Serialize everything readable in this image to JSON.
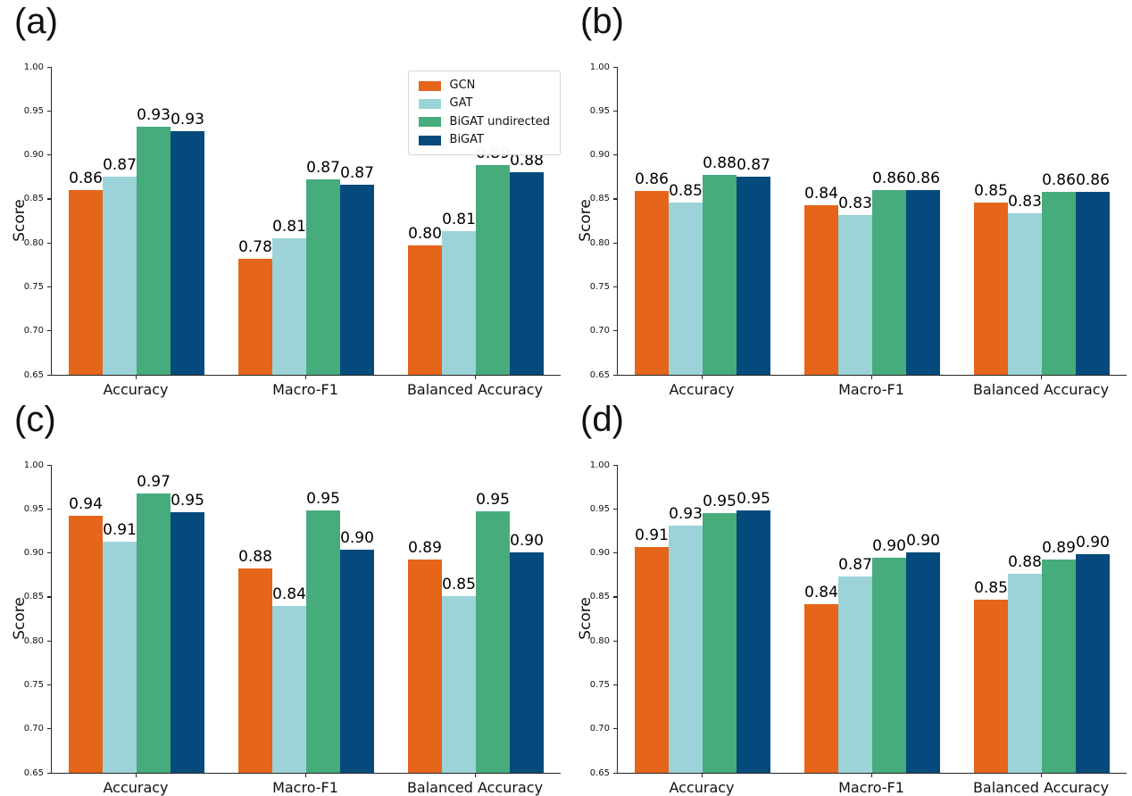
{
  "style": {
    "colors": {
      "GCN": "#E5651A",
      "GAT": "#9CD3D9",
      "BiGAT undirected": "#46AC7C",
      "BiGAT": "#054A7C"
    },
    "axis_color": "#262626",
    "legend_border": "#D5D5D5"
  },
  "legend": {
    "location": "upper right",
    "entries": [
      "GCN",
      "GAT",
      "BiGAT undirected",
      "BiGAT"
    ]
  },
  "chart_data": [
    {
      "id": "a",
      "title": "(a)",
      "type": "bar",
      "ylabel": "Score",
      "ylim": [
        0.65,
        1.0
      ],
      "yticks": [
        "1.00",
        "0.95",
        "0.90",
        "0.85",
        "0.80",
        "0.75",
        "0.70",
        "0.65"
      ],
      "categories": [
        "Accuracy",
        "Macro-F1",
        "Balanced Accuracy"
      ],
      "show_legend": true,
      "series": [
        {
          "name": "GCN",
          "values": [
            0.86,
            0.782,
            0.797
          ],
          "labels": [
            "0.86",
            "0.78",
            "0.80"
          ]
        },
        {
          "name": "GAT",
          "values": [
            0.875,
            0.805,
            0.813
          ],
          "labels": [
            "0.87",
            "0.81",
            "0.81"
          ]
        },
        {
          "name": "BiGAT undirected",
          "values": [
            0.932,
            0.872,
            0.888
          ],
          "labels": [
            "0.93",
            "0.87",
            "0.89"
          ]
        },
        {
          "name": "BiGAT",
          "values": [
            0.927,
            0.866,
            0.88
          ],
          "labels": [
            "0.93",
            "0.87",
            "0.88"
          ]
        }
      ]
    },
    {
      "id": "b",
      "title": "(b)",
      "type": "bar",
      "ylabel": "Score",
      "ylim": [
        0.65,
        1.0
      ],
      "yticks": [
        "1.00",
        "0.95",
        "0.90",
        "0.85",
        "0.80",
        "0.75",
        "0.70",
        "0.65"
      ],
      "categories": [
        "Accuracy",
        "Macro-F1",
        "Balanced Accuracy"
      ],
      "show_legend": false,
      "series": [
        {
          "name": "GCN",
          "values": [
            0.859,
            0.843,
            0.846
          ],
          "labels": [
            "0.86",
            "0.84",
            "0.85"
          ]
        },
        {
          "name": "GAT",
          "values": [
            0.846,
            0.832,
            0.834
          ],
          "labels": [
            "0.85",
            "0.83",
            "0.83"
          ]
        },
        {
          "name": "BiGAT undirected",
          "values": [
            0.877,
            0.86,
            0.858
          ],
          "labels": [
            "0.88",
            "0.86",
            "0.86"
          ]
        },
        {
          "name": "BiGAT",
          "values": [
            0.875,
            0.86,
            0.858
          ],
          "labels": [
            "0.87",
            "0.86",
            "0.86"
          ]
        }
      ]
    },
    {
      "id": "c",
      "title": "(c)",
      "type": "bar",
      "ylabel": "Score",
      "ylim": [
        0.65,
        1.0
      ],
      "yticks": [
        "1.00",
        "0.95",
        "0.90",
        "0.85",
        "0.80",
        "0.75",
        "0.70",
        "0.65"
      ],
      "categories": [
        "Accuracy",
        "Macro-F1",
        "Balanced Accuracy"
      ],
      "show_legend": false,
      "series": [
        {
          "name": "GCN",
          "values": [
            0.942,
            0.882,
            0.892
          ],
          "labels": [
            "0.94",
            "0.88",
            "0.89"
          ]
        },
        {
          "name": "GAT",
          "values": [
            0.913,
            0.84,
            0.851
          ],
          "labels": [
            "0.91",
            "0.84",
            "0.85"
          ]
        },
        {
          "name": "BiGAT undirected",
          "values": [
            0.968,
            0.948,
            0.947
          ],
          "labels": [
            "0.97",
            "0.95",
            "0.95"
          ]
        },
        {
          "name": "BiGAT",
          "values": [
            0.946,
            0.904,
            0.901
          ],
          "labels": [
            "0.95",
            "0.90",
            "0.90"
          ]
        }
      ]
    },
    {
      "id": "d",
      "title": "(d)",
      "type": "bar",
      "ylabel": "Score",
      "ylim": [
        0.65,
        1.0
      ],
      "yticks": [
        "1.00",
        "0.95",
        "0.90",
        "0.85",
        "0.80",
        "0.75",
        "0.70",
        "0.65"
      ],
      "categories": [
        "Accuracy",
        "Macro-F1",
        "Balanced Accuracy"
      ],
      "show_legend": false,
      "series": [
        {
          "name": "GCN",
          "values": [
            0.907,
            0.842,
            0.847
          ],
          "labels": [
            "0.91",
            "0.84",
            "0.85"
          ]
        },
        {
          "name": "GAT",
          "values": [
            0.931,
            0.873,
            0.876
          ],
          "labels": [
            "0.93",
            "0.87",
            "0.88"
          ]
        },
        {
          "name": "BiGAT undirected",
          "values": [
            0.945,
            0.895,
            0.892
          ],
          "labels": [
            "0.95",
            "0.90",
            "0.89"
          ]
        },
        {
          "name": "BiGAT",
          "values": [
            0.948,
            0.901,
            0.899
          ],
          "labels": [
            "0.95",
            "0.90",
            "0.90"
          ]
        }
      ]
    }
  ]
}
